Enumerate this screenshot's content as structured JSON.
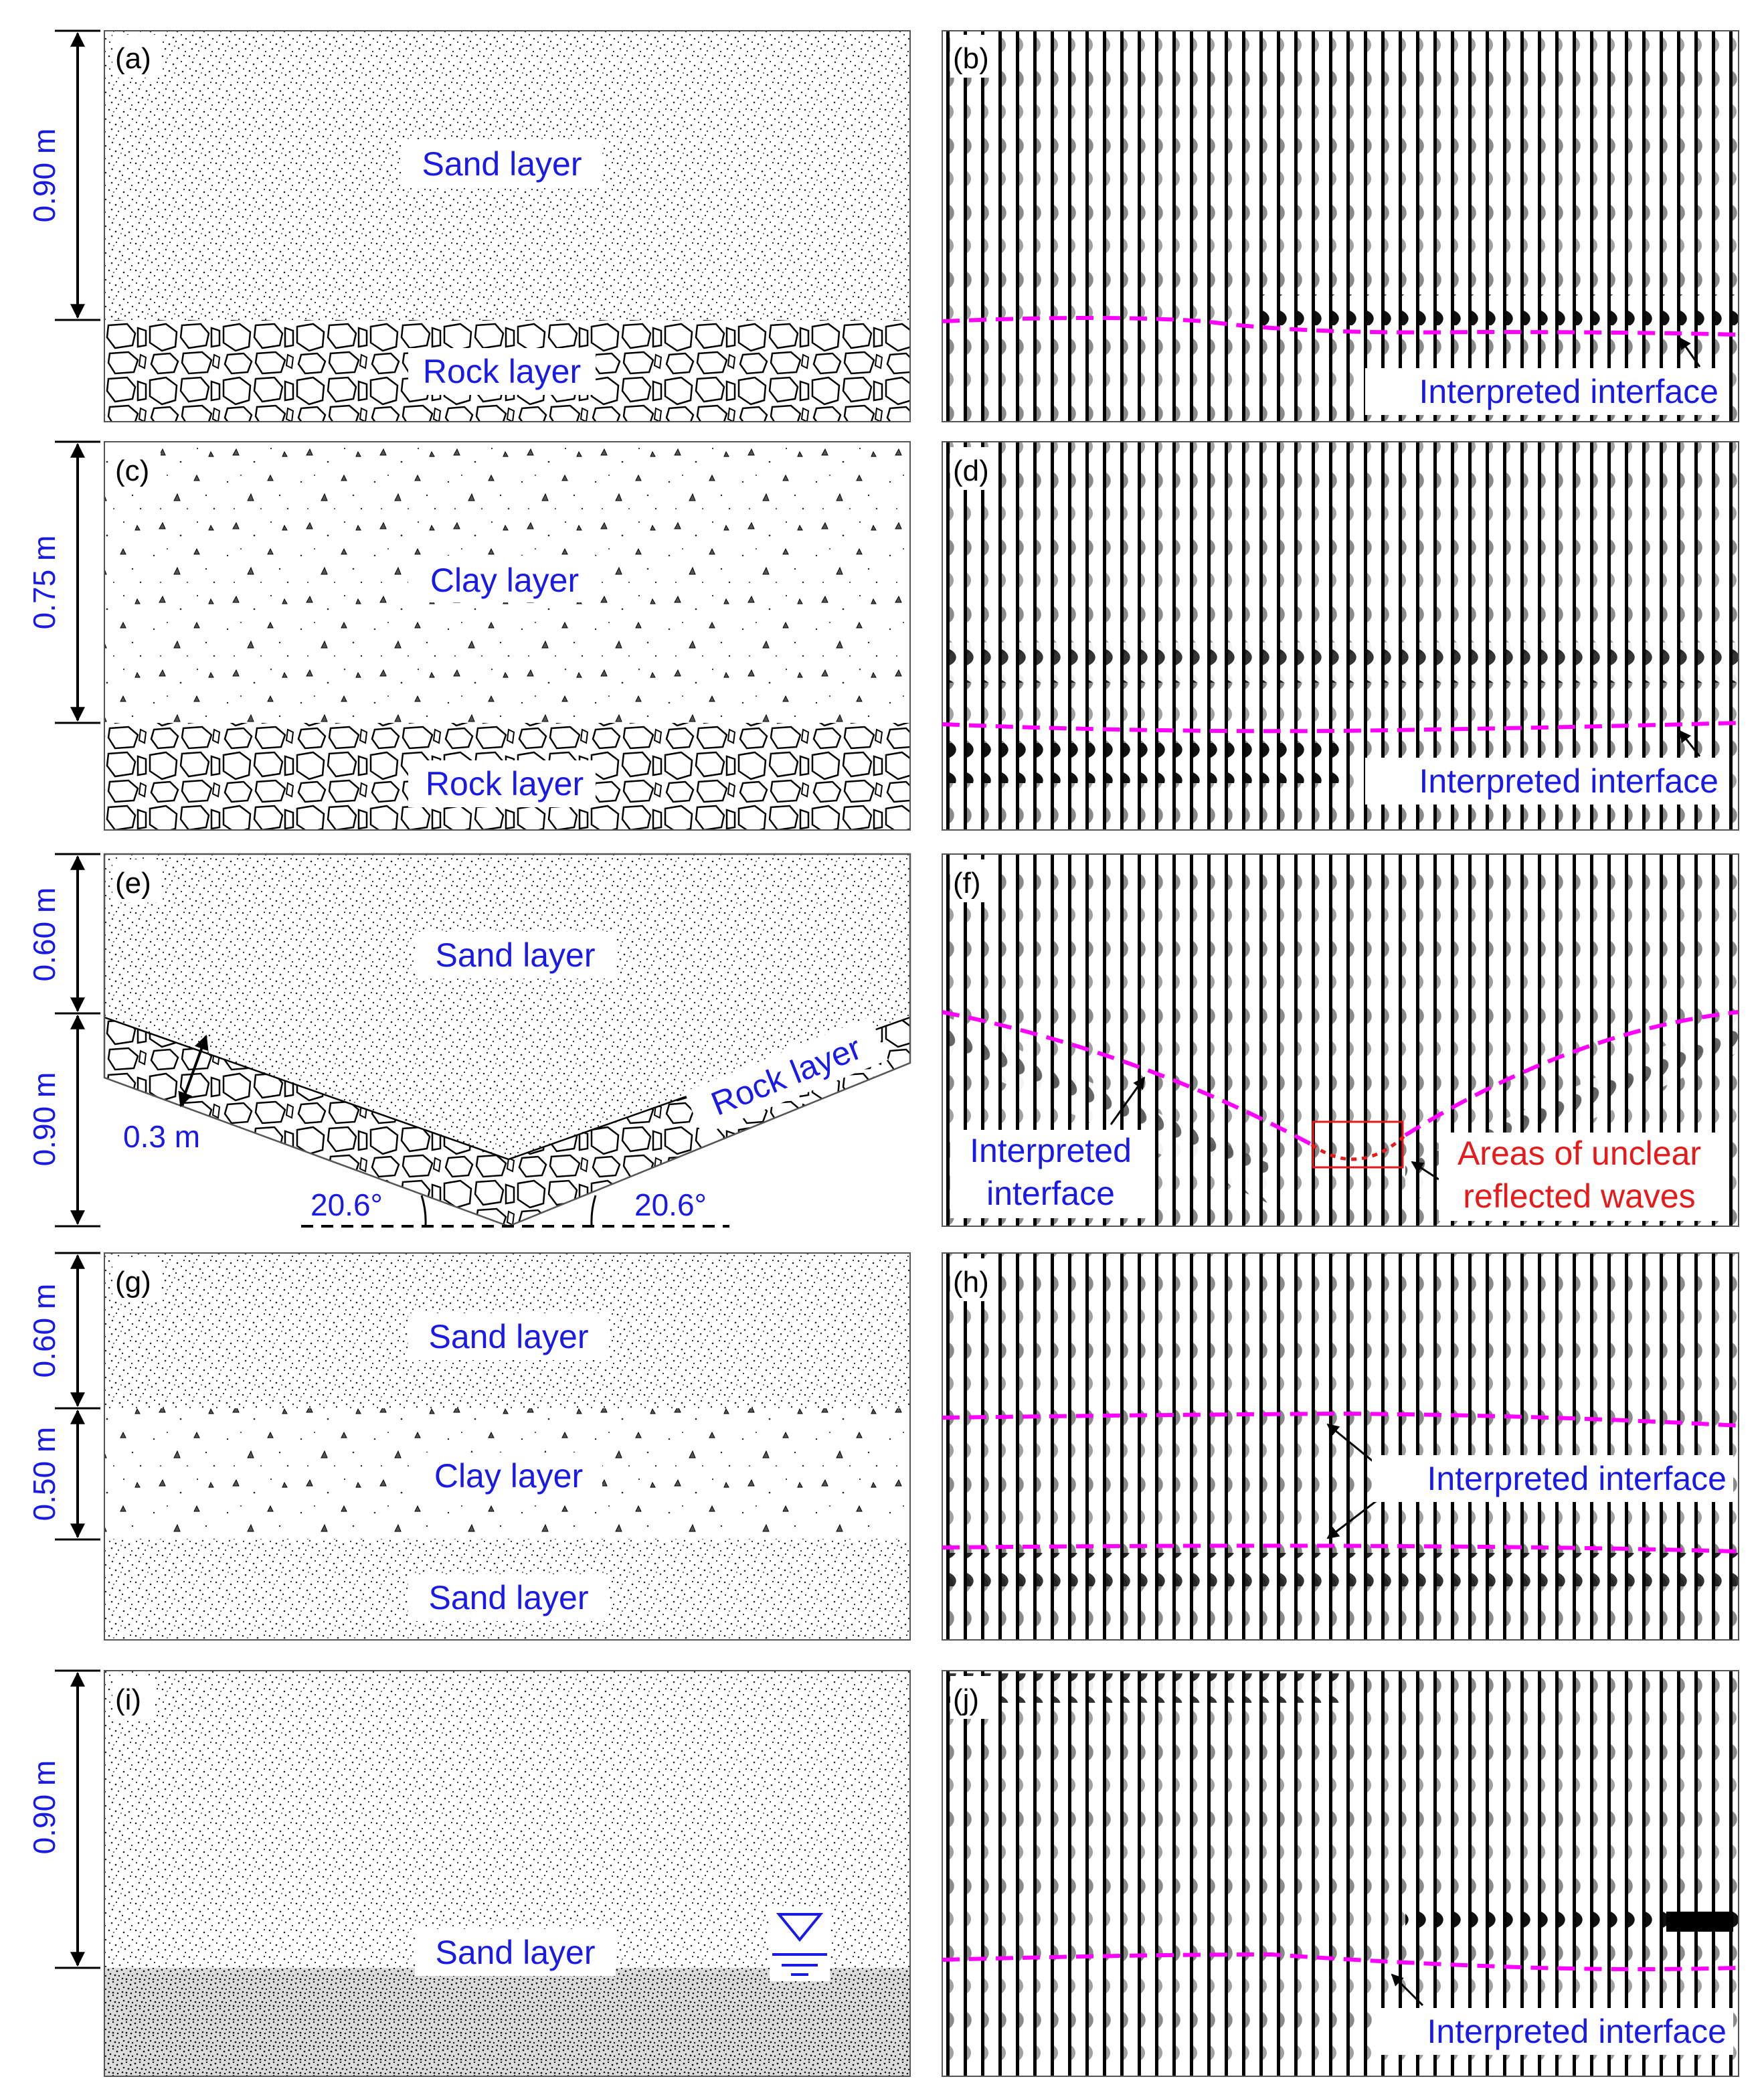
{
  "colors": {
    "label_blue": "#1a1ae6",
    "label_red": "#e61a1a",
    "interface_magenta": "#ff00ff",
    "ink": "#000000"
  },
  "panels": [
    {
      "geo_letter": "(a)",
      "seis_letter": "(b)",
      "dims": [
        "0.90 m"
      ],
      "layer_labels": [
        "Sand layer",
        "Rock layer"
      ],
      "interface_label": "Interpreted interface"
    },
    {
      "geo_letter": "(c)",
      "seis_letter": "(d)",
      "dims": [
        "0.75 m"
      ],
      "layer_labels": [
        "Clay layer",
        "Rock layer"
      ],
      "interface_label": "Interpreted interface"
    },
    {
      "geo_letter": "(e)",
      "seis_letter": "(f)",
      "dims": [
        "0.60 m",
        "0.90 m"
      ],
      "layer_labels": [
        "Sand layer",
        "Rock layer"
      ],
      "thickness_label": "0.3 m",
      "angles": [
        "20.6°",
        "20.6°"
      ],
      "interface_label_lines": [
        "Interpreted",
        "interface"
      ],
      "unclear_label_lines": [
        "Areas of unclear",
        "reflected waves"
      ]
    },
    {
      "geo_letter": "(g)",
      "seis_letter": "(h)",
      "dims": [
        "0.60 m",
        "0.50 m"
      ],
      "layer_labels": [
        "Sand layer",
        "Clay layer",
        "Sand layer"
      ],
      "interface_label": "Interpreted interface"
    },
    {
      "geo_letter": "(i)",
      "seis_letter": "(j)",
      "dims": [
        "0.90 m"
      ],
      "layer_labels": [
        "Sand layer"
      ],
      "water_table_icon": "water-table-symbol",
      "interface_label": "Interpreted interface"
    }
  ]
}
